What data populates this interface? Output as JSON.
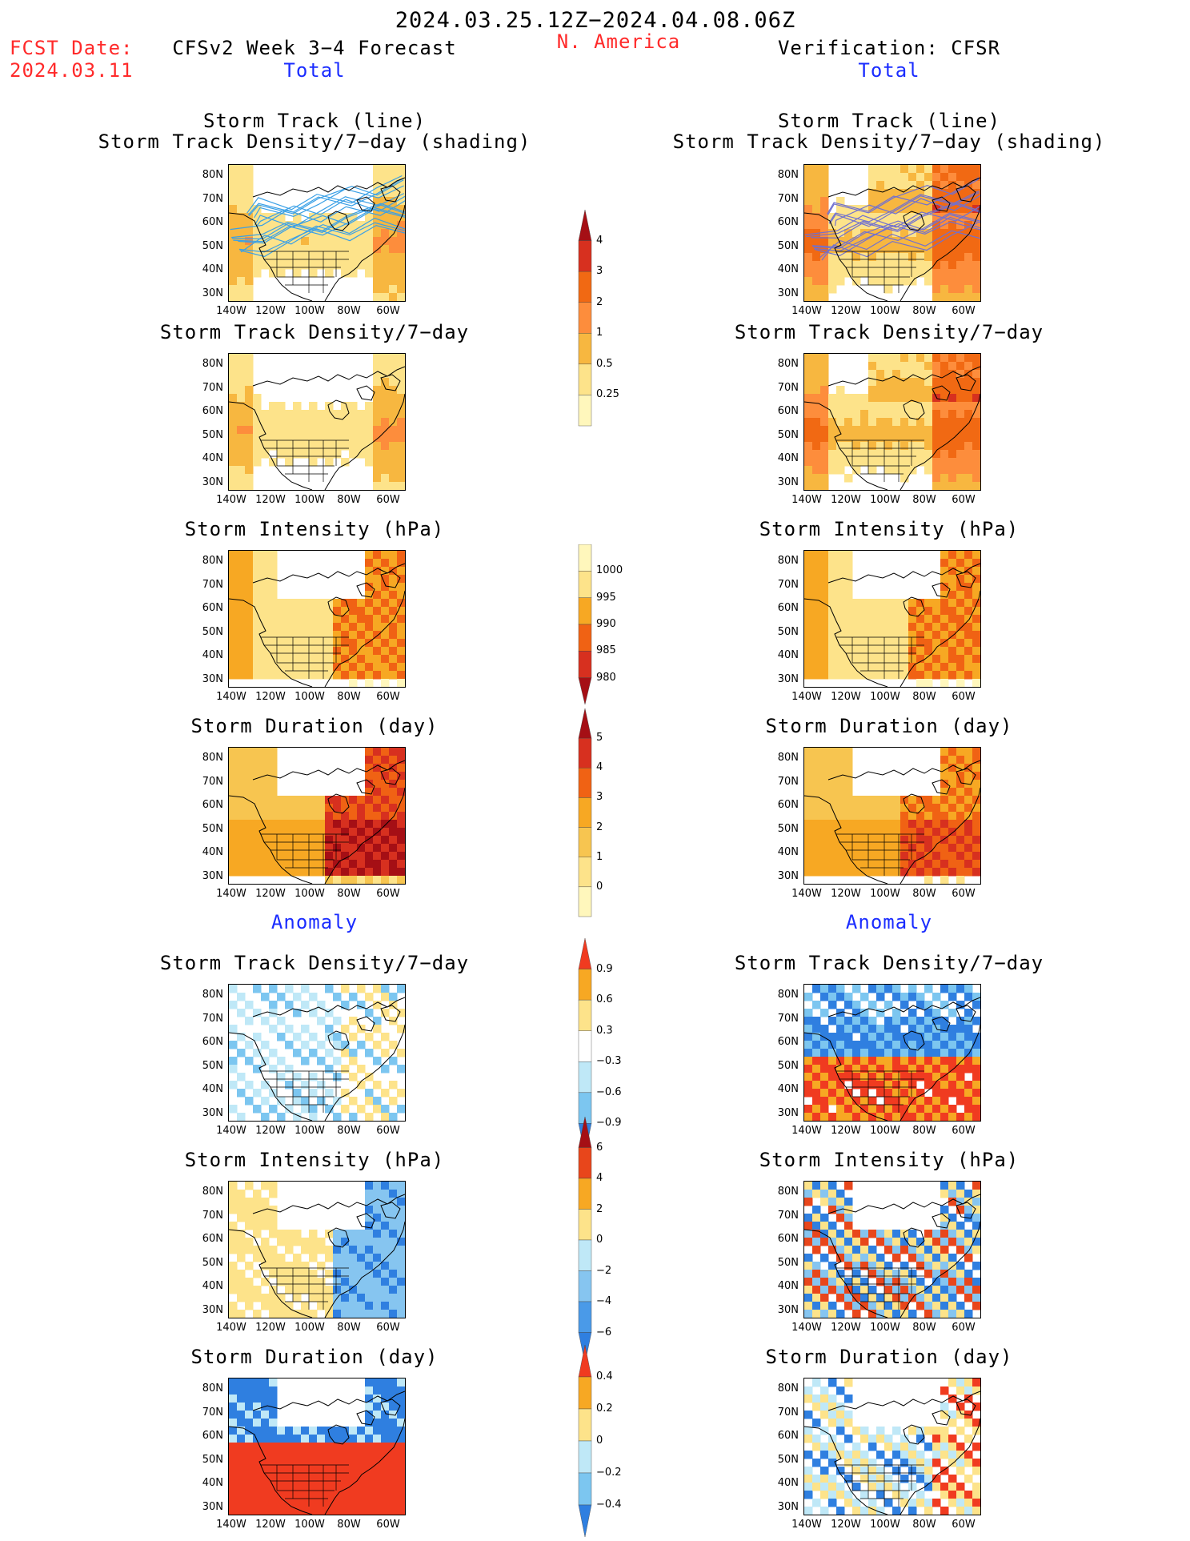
{
  "header": {
    "date_range": "2024.03.25.12Z−2024.04.08.06Z",
    "fcst_label": "FCST Date:",
    "fcst_date": "2024.03.11",
    "left_title": "CFSv2 Week 3−4 Forecast",
    "region": "N. America",
    "right_title": "Verification: CFSR",
    "left_section": "Total",
    "right_section": "Total",
    "left_anomaly": "Anomaly",
    "right_anomaly": "Anomaly"
  },
  "panels": [
    {
      "title1": "Storm Track (line)",
      "title2": "Storm Track Density/7−day (shading)",
      "field": "track-total"
    },
    {
      "title1": "Storm Track Density/7−day",
      "field": "density-total"
    },
    {
      "title1": "Storm Intensity (hPa)",
      "field": "intensity-total"
    },
    {
      "title1": "Storm Duration (day)",
      "field": "duration-total"
    },
    {
      "title1": "Storm Track Density/7−day",
      "field": "density-anom"
    },
    {
      "title1": "Storm Intensity (hPa)",
      "field": "intensity-anom"
    },
    {
      "title1": "Storm Duration (day)",
      "field": "duration-anom"
    }
  ],
  "axes": {
    "lat_labels": [
      "80N",
      "70N",
      "60N",
      "50N",
      "40N",
      "30N"
    ],
    "lon_labels": [
      "140W",
      "120W",
      "100W",
      "80W",
      "60W"
    ]
  },
  "colorbars": [
    {
      "id": "density",
      "labels": [
        "4",
        "3",
        "2",
        "1",
        "0.5",
        "0.25"
      ],
      "colors": [
        "#a50f15",
        "#d7301f",
        "#f16913",
        "#fd8d3c",
        "#f7b740",
        "#fde38a",
        "#fff7bc"
      ]
    },
    {
      "id": "intensity",
      "labels": [
        "1000",
        "995",
        "990",
        "985",
        "980"
      ],
      "colors": [
        "#fff7bc",
        "#fde38a",
        "#f7a823",
        "#f06214",
        "#d7301f",
        "#a50f15"
      ]
    },
    {
      "id": "duration",
      "labels": [
        "5",
        "4",
        "3",
        "2",
        "1",
        "0"
      ],
      "colors": [
        "#a50f15",
        "#d7301f",
        "#f06214",
        "#f7a823",
        "#f7c550",
        "#fde38a",
        "#fff7bc"
      ]
    },
    {
      "id": "density-anom",
      "labels": [
        "0.9",
        "0.6",
        "0.3",
        "−0.3",
        "−0.6",
        "−0.9"
      ],
      "colors": [
        "#f03b20",
        "#f7a823",
        "#fde38a",
        "#ffffff",
        "#bfe8f7",
        "#7cc6f0",
        "#2f7fe0"
      ]
    },
    {
      "id": "intensity-anom",
      "labels": [
        "6",
        "4",
        "2",
        "0",
        "−2",
        "−4",
        "−6"
      ],
      "colors": [
        "#a50f15",
        "#e8461b",
        "#f7a823",
        "#fde38a",
        "#bfe8f7",
        "#86c5f0",
        "#4a9ae8",
        "#2f7fe0"
      ]
    },
    {
      "id": "duration-anom",
      "labels": [
        "0.4",
        "0.2",
        "0",
        "−0.2",
        "−0.4"
      ],
      "colors": [
        "#f03b20",
        "#f7a823",
        "#fde38a",
        "#bfe8f7",
        "#7cc6f0",
        "#2f7fe0"
      ]
    }
  ]
}
